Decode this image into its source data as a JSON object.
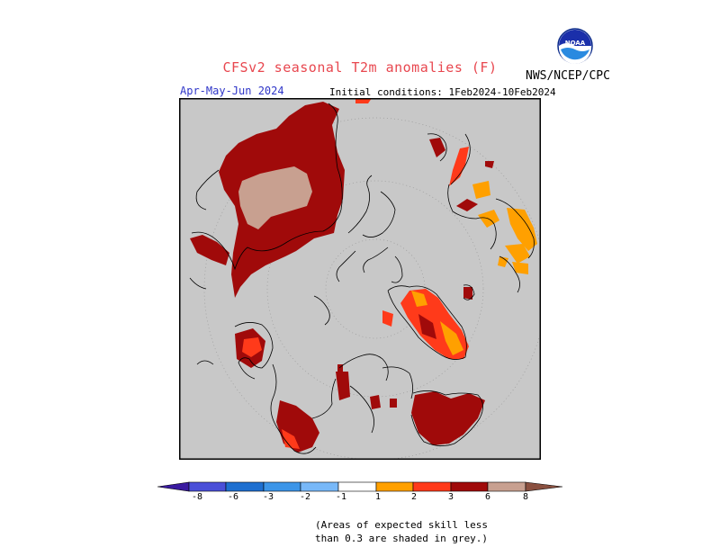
{
  "title": "CFSv2 seasonal T2m anomalies (F)",
  "season": "Apr-May-Jun 2024",
  "initial_conditions": "Initial conditions: 1Feb2024-10Feb2024",
  "agency": "NWS/NCEP/CPC",
  "logo_icon": "noaa-logo",
  "logo_text": "NOAA",
  "note_line1": "(Areas of expected skill less",
  "note_line2": "than 0.3 are shaded in grey.)",
  "map": {
    "projection": "north polar stereographic",
    "background_color": "#c8c8c8",
    "coastline_color": "#000000",
    "graticule": "dotted"
  },
  "colorbar": {
    "tick_labels": [
      "-8",
      "-6",
      "-3",
      "-2",
      "-1",
      "1",
      "2",
      "3",
      "6",
      "8"
    ],
    "colors": {
      "lt_minus8": "#3a1aa0",
      "minus8_to_minus6": "#4a4fd8",
      "minus6_to_minus3": "#1e6fd0",
      "minus3_to_minus2": "#3c95e8",
      "minus2_to_minus1": "#78b8f8",
      "neutral": "#ffffff",
      "plus1_to_plus2": "#ffa000",
      "plus2_to_plus3": "#ff3a1a",
      "plus3_to_plus6": "#a00a0a",
      "plus6_to_plus8": "#c8a090",
      "gt_plus8": "#8a5040"
    }
  },
  "legend_anomaly_classes": [
    {
      "range": "1 to 2",
      "color": "#ffa000"
    },
    {
      "range": "2 to 3",
      "color": "#ff3a1a"
    },
    {
      "range": "3 to 6",
      "color": "#a00a0a"
    },
    {
      "range": "6 to 8",
      "color": "#c8a090"
    }
  ]
}
